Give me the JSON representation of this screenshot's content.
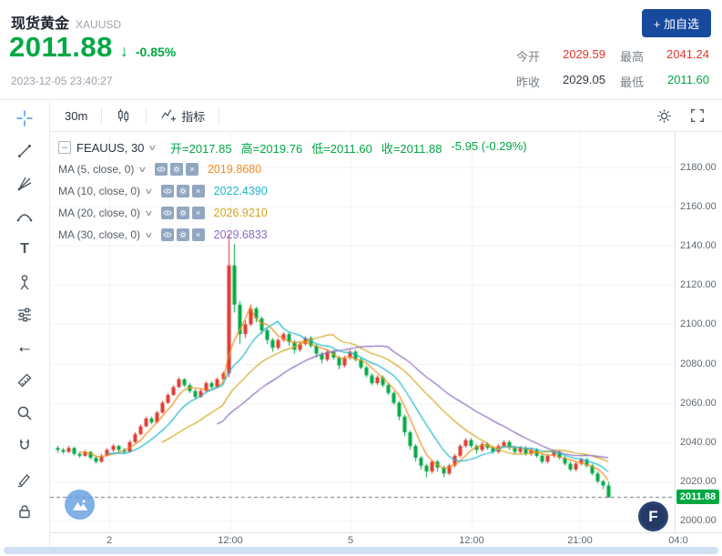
{
  "header": {
    "symbol_name": "现货黄金",
    "symbol_code": "XAUUSD",
    "price": "2011.88",
    "change_percent": "-0.85%",
    "timestamp": "2023-12-05 23:40:27",
    "add_watchlist_label": "+ 加自选",
    "stats": [
      {
        "label": "今开",
        "value": "2029.59",
        "color": "#e0382f"
      },
      {
        "label": "最高",
        "value": "2041.24",
        "color": "#e0382f"
      },
      {
        "label": "昨收",
        "value": "2029.05",
        "color": "#323a45"
      },
      {
        "label": "最低",
        "value": "2011.60",
        "color": "#00a843"
      }
    ]
  },
  "toolbar": {
    "timeframe": "30m",
    "indicator_label": "指标"
  },
  "legend": {
    "series_name": "FEAUUS, 30",
    "ohlc": [
      "开=2017.85",
      "高=2019.76",
      "低=2011.60",
      "收=2011.88"
    ],
    "change": "-5.95 (-0.29%)",
    "mas": [
      {
        "label": "MA (5, close, 0)",
        "value": "2019.8680",
        "color": "#f08c1a"
      },
      {
        "label": "MA (10, close, 0)",
        "value": "2022.4390",
        "color": "#19b8cf"
      },
      {
        "label": "MA (20, close, 0)",
        "value": "2026.9210",
        "color": "#d3a518"
      },
      {
        "label": "MA (30, close, 0)",
        "value": "2029.6833",
        "color": "#8d6cc0"
      }
    ]
  },
  "icons": {
    "chevron_down": "∨",
    "minus": "–",
    "close_x": "×",
    "down_arrow": "↓",
    "back_arrow": "←",
    "text_tool": "T"
  },
  "misc": {
    "logo_letter": "F"
  },
  "chart_data": {
    "type": "candlestick",
    "title": "现货黄金 XAUUSD 30m",
    "interval": "30m",
    "price_range": [
      1994,
      2198
    ],
    "y_ticks": [
      2180,
      2160,
      2140,
      2120,
      2100,
      2080,
      2060,
      2040,
      2020,
      2000
    ],
    "x_ticks": [
      {
        "label": "2",
        "x": 120
      },
      {
        "label": "12:00",
        "x": 253
      },
      {
        "label": "5",
        "x": 385
      },
      {
        "label": "12:00",
        "x": 518
      },
      {
        "label": "21:00",
        "x": 637
      },
      {
        "label": "04:0",
        "x": 745
      }
    ],
    "current_price": 2011.88,
    "current_price_label": "2011.88",
    "up_color": "#e0382f",
    "down_color": "#00a843",
    "ma_periods": [
      5,
      10,
      20,
      30
    ],
    "ma_colors": [
      "#f08c1a",
      "#19b8cf",
      "#d3a518",
      "#8d6cc0"
    ],
    "candles": [
      [
        2037,
        2038,
        2034.5,
        2036
      ],
      [
        2036,
        2037,
        2034,
        2035
      ],
      [
        2035,
        2038,
        2034.5,
        2037
      ],
      [
        2037,
        2037.5,
        2033,
        2034
      ],
      [
        2034,
        2035,
        2032,
        2033
      ],
      [
        2033,
        2036,
        2032.5,
        2035
      ],
      [
        2035,
        2035.5,
        2031,
        2032
      ],
      [
        2032,
        2033,
        2029,
        2030
      ],
      [
        2030,
        2034,
        2029.5,
        2033
      ],
      [
        2033,
        2037,
        2032.5,
        2036
      ],
      [
        2036,
        2039,
        2035,
        2038
      ],
      [
        2038,
        2038.5,
        2035,
        2036
      ],
      [
        2036,
        2037,
        2034,
        2035
      ],
      [
        2035,
        2041,
        2034.5,
        2040
      ],
      [
        2040,
        2045,
        2039.5,
        2044
      ],
      [
        2044,
        2049,
        2043.5,
        2048
      ],
      [
        2048,
        2053,
        2047.5,
        2052
      ],
      [
        2052,
        2053,
        2049,
        2050
      ],
      [
        2050,
        2056,
        2049.5,
        2055
      ],
      [
        2055,
        2061,
        2054.5,
        2060
      ],
      [
        2060,
        2065,
        2059.5,
        2064
      ],
      [
        2064,
        2069,
        2063.5,
        2068
      ],
      [
        2068,
        2073,
        2067.5,
        2072
      ],
      [
        2072,
        2072.5,
        2068,
        2069
      ],
      [
        2069,
        2070,
        2065,
        2066
      ],
      [
        2066,
        2067,
        2062,
        2063
      ],
      [
        2063,
        2067,
        2062.5,
        2066
      ],
      [
        2066,
        2071,
        2065.5,
        2070
      ],
      [
        2070,
        2071,
        2067,
        2068
      ],
      [
        2068,
        2073,
        2067.5,
        2072
      ],
      [
        2072,
        2076,
        2071.5,
        2075
      ],
      [
        2075,
        2146,
        2073,
        2130
      ],
      [
        2130,
        2141,
        2106,
        2110
      ],
      [
        2110,
        2112,
        2090,
        2095
      ],
      [
        2095,
        2102,
        2093,
        2100
      ],
      [
        2100,
        2110,
        2099,
        2108
      ],
      [
        2108,
        2109,
        2101,
        2103
      ],
      [
        2103,
        2104,
        2095,
        2097
      ],
      [
        2097,
        2098,
        2090,
        2092
      ],
      [
        2092,
        2093,
        2086,
        2088
      ],
      [
        2088,
        2093,
        2087,
        2092
      ],
      [
        2092,
        2096,
        2091,
        2095
      ],
      [
        2095,
        2096,
        2089,
        2091
      ],
      [
        2091,
        2092,
        2085,
        2087
      ],
      [
        2087,
        2091,
        2086,
        2090
      ],
      [
        2090,
        2094,
        2089,
        2093
      ],
      [
        2093,
        2094,
        2088,
        2089
      ],
      [
        2089,
        2090,
        2083,
        2085
      ],
      [
        2085,
        2086,
        2080,
        2082
      ],
      [
        2082,
        2087,
        2081,
        2086
      ],
      [
        2086,
        2087,
        2082,
        2083
      ],
      [
        2083,
        2084,
        2077,
        2079
      ],
      [
        2079,
        2084,
        2078,
        2083
      ],
      [
        2083,
        2087,
        2082,
        2086
      ],
      [
        2086,
        2087,
        2081,
        2082
      ],
      [
        2082,
        2083,
        2077,
        2078
      ],
      [
        2078,
        2079,
        2073,
        2074
      ],
      [
        2074,
        2075,
        2069,
        2070
      ],
      [
        2070,
        2074,
        2069,
        2073
      ],
      [
        2073,
        2074,
        2068,
        2069
      ],
      [
        2069,
        2070,
        2064,
        2065
      ],
      [
        2065,
        2066,
        2059,
        2060
      ],
      [
        2060,
        2061,
        2051,
        2053
      ],
      [
        2053,
        2054,
        2043,
        2045
      ],
      [
        2045,
        2046,
        2036,
        2038
      ],
      [
        2038,
        2039,
        2030,
        2032
      ],
      [
        2032,
        2033,
        2026,
        2028
      ],
      [
        2028,
        2029,
        2022,
        2025
      ],
      [
        2025,
        2031,
        2024,
        2030
      ],
      [
        2030,
        2031,
        2025,
        2027
      ],
      [
        2027,
        2028,
        2022,
        2024
      ],
      [
        2024,
        2029,
        2023,
        2028
      ],
      [
        2028,
        2034,
        2027,
        2033
      ],
      [
        2033,
        2039,
        2032,
        2038
      ],
      [
        2038,
        2042,
        2037,
        2041
      ],
      [
        2041,
        2042,
        2037,
        2038
      ],
      [
        2038,
        2039,
        2034,
        2036
      ],
      [
        2036,
        2040,
        2035,
        2039
      ],
      [
        2039,
        2040,
        2036,
        2037
      ],
      [
        2037,
        2038,
        2034,
        2035
      ],
      [
        2035,
        2039,
        2034,
        2038
      ],
      [
        2038,
        2041,
        2037,
        2040
      ],
      [
        2040,
        2041,
        2036,
        2037
      ],
      [
        2037,
        2038,
        2034,
        2035
      ],
      [
        2035,
        2038,
        2034,
        2037
      ],
      [
        2037,
        2038,
        2033,
        2034
      ],
      [
        2034,
        2037,
        2033,
        2036
      ],
      [
        2036,
        2037,
        2032,
        2033
      ],
      [
        2033,
        2034,
        2029,
        2030
      ],
      [
        2030,
        2034,
        2029,
        2033
      ],
      [
        2033,
        2036,
        2032,
        2035
      ],
      [
        2035,
        2036,
        2031,
        2032
      ],
      [
        2032,
        2033,
        2028,
        2029
      ],
      [
        2029,
        2030,
        2025,
        2026
      ],
      [
        2026,
        2030,
        2025,
        2029
      ],
      [
        2029,
        2032,
        2028,
        2031
      ],
      [
        2031,
        2032,
        2027,
        2028
      ],
      [
        2028,
        2029,
        2023,
        2024
      ],
      [
        2024,
        2025,
        2019,
        2020
      ],
      [
        2020,
        2021,
        2016,
        2017.85
      ],
      [
        2017.85,
        2019.76,
        2011.6,
        2011.88
      ]
    ]
  }
}
